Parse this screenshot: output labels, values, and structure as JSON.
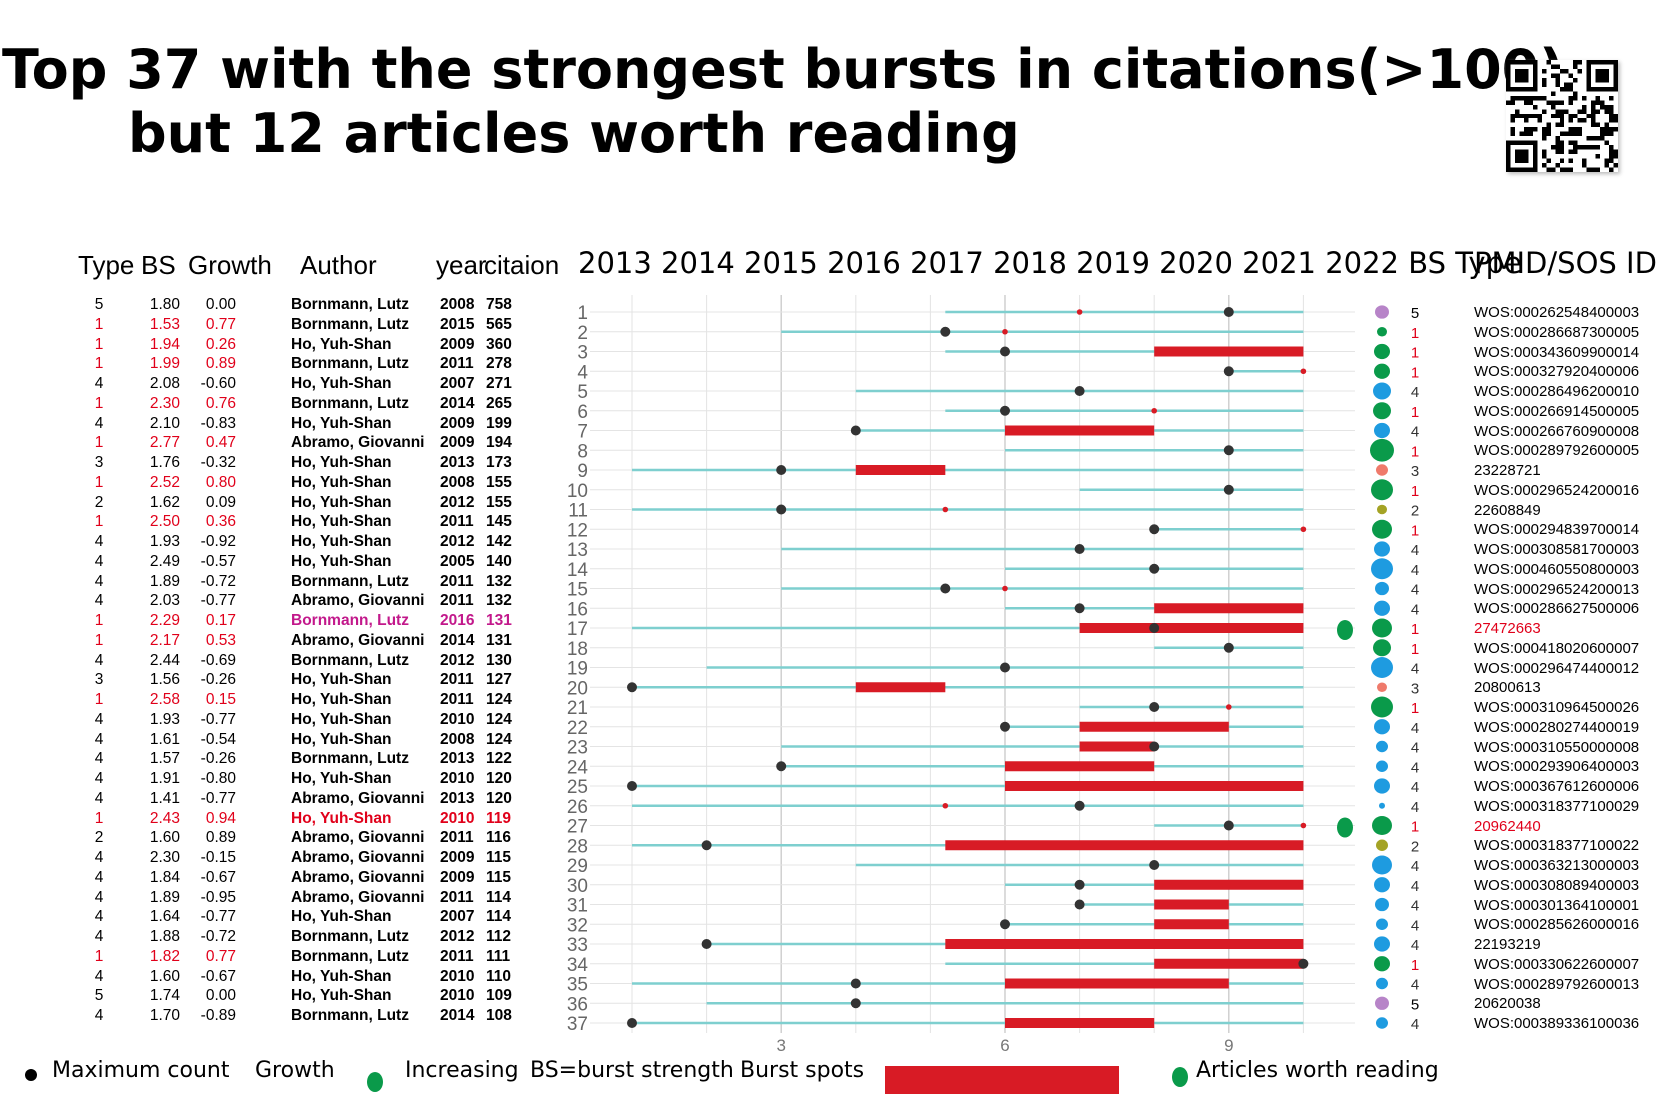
{
  "title_line1": "Top 37 with the strongest bursts in citations(>100),",
  "title_line2": "but 12 articles worth reading",
  "headers": {
    "type": "Type",
    "bs": "BS",
    "growth": "Growth",
    "author": "Author",
    "year": "year",
    "citation": "citaion",
    "years_bs_type": "2013 2014 2015 2016 2017 2018  2019  2020 2021 2022 BS Type",
    "pmid": "PMID/SOS ID"
  },
  "legend": {
    "max_count": "Maximum count",
    "growth": "Growth",
    "increasing": "Increasing",
    "bs_def": "BS=burst strength",
    "burst_spots": "Burst spots",
    "worth_reading": "Articles worth reading"
  },
  "colors": {
    "red": "#e0001a",
    "magenta": "#c2188b",
    "teal": "#7ecfcf",
    "burst": "#d81b25",
    "green": "#0a9a4a",
    "blue": "#1e9be0",
    "purple": "#b784c8",
    "salmon": "#ef7a6b",
    "olive": "#a4a325"
  },
  "rows": [
    {
      "type": "5",
      "bs": "1.80",
      "growth": "0.00",
      "author": "Bornmann, Lutz",
      "year": "2008",
      "cit": "758",
      "pmid": "WOS:000262548400003",
      "hl": ""
    },
    {
      "type": "1",
      "bs": "1.53",
      "growth": "0.77",
      "author": "Bornmann, Lutz",
      "year": "2015",
      "cit": "565",
      "pmid": "WOS:000286687300005",
      "hl": "red"
    },
    {
      "type": "1",
      "bs": "1.94",
      "growth": "0.26",
      "author": "Ho, Yuh-Shan",
      "year": "2009",
      "cit": "360",
      "pmid": "WOS:000343609900014",
      "hl": "red"
    },
    {
      "type": "1",
      "bs": "1.99",
      "growth": "0.89",
      "author": "Bornmann, Lutz",
      "year": "2011",
      "cit": "278",
      "pmid": "WOS:000327920400006",
      "hl": "red"
    },
    {
      "type": "4",
      "bs": "2.08",
      "growth": "-0.60",
      "author": "Ho, Yuh-Shan",
      "year": "2007",
      "cit": "271",
      "pmid": "WOS:000286496200010",
      "hl": ""
    },
    {
      "type": "1",
      "bs": "2.30",
      "growth": "0.76",
      "author": "Bornmann, Lutz",
      "year": "2014",
      "cit": "265",
      "pmid": "WOS:000266914500005",
      "hl": "red"
    },
    {
      "type": "4",
      "bs": "2.10",
      "growth": "-0.83",
      "author": "Ho, Yuh-Shan",
      "year": "2009",
      "cit": "199",
      "pmid": "WOS:000266760900008",
      "hl": ""
    },
    {
      "type": "1",
      "bs": "2.77",
      "growth": "0.47",
      "author": "Abramo, Giovanni",
      "year": "2009",
      "cit": "194",
      "pmid": "WOS:000289792600005",
      "hl": "red"
    },
    {
      "type": "3",
      "bs": "1.76",
      "growth": "-0.32",
      "author": "Ho, Yuh-Shan",
      "year": "2013",
      "cit": "173",
      "pmid": "23228721",
      "hl": ""
    },
    {
      "type": "1",
      "bs": "2.52",
      "growth": "0.80",
      "author": "Ho, Yuh-Shan",
      "year": "2008",
      "cit": "155",
      "pmid": "WOS:000296524200016",
      "hl": "red"
    },
    {
      "type": "2",
      "bs": "1.62",
      "growth": "0.09",
      "author": "Ho, Yuh-Shan",
      "year": "2012",
      "cit": "155",
      "pmid": "22608849",
      "hl": ""
    },
    {
      "type": "1",
      "bs": "2.50",
      "growth": "0.36",
      "author": "Ho, Yuh-Shan",
      "year": "2011",
      "cit": "145",
      "pmid": "WOS:000294839700014",
      "hl": "red"
    },
    {
      "type": "4",
      "bs": "1.93",
      "growth": "-0.92",
      "author": "Ho, Yuh-Shan",
      "year": "2012",
      "cit": "142",
      "pmid": "WOS:000308581700003",
      "hl": ""
    },
    {
      "type": "4",
      "bs": "2.49",
      "growth": "-0.57",
      "author": "Ho, Yuh-Shan",
      "year": "2005",
      "cit": "140",
      "pmid": "WOS:000460550800003",
      "hl": ""
    },
    {
      "type": "4",
      "bs": "1.89",
      "growth": "-0.72",
      "author": "Bornmann, Lutz",
      "year": "2011",
      "cit": "132",
      "pmid": "WOS:000296524200013",
      "hl": ""
    },
    {
      "type": "4",
      "bs": "2.03",
      "growth": "-0.77",
      "author": "Abramo, Giovanni",
      "year": "2011",
      "cit": "132",
      "pmid": "WOS:000286627500006",
      "hl": ""
    },
    {
      "type": "1",
      "bs": "2.29",
      "growth": "0.17",
      "author": "Bornmann, Lutz",
      "year": "2016",
      "cit": "131",
      "pmid": "27472663",
      "hl": "mag"
    },
    {
      "type": "1",
      "bs": "2.17",
      "growth": "0.53",
      "author": "Abramo, Giovanni",
      "year": "2014",
      "cit": "131",
      "pmid": "WOS:000418020600007",
      "hl": "red"
    },
    {
      "type": "4",
      "bs": "2.44",
      "growth": "-0.69",
      "author": "Bornmann, Lutz",
      "year": "2012",
      "cit": "130",
      "pmid": "WOS:000296474400012",
      "hl": ""
    },
    {
      "type": "3",
      "bs": "1.56",
      "growth": "-0.26",
      "author": "Ho, Yuh-Shan",
      "year": "2011",
      "cit": "127",
      "pmid": "20800613",
      "hl": ""
    },
    {
      "type": "1",
      "bs": "2.58",
      "growth": "0.15",
      "author": "Ho, Yuh-Shan",
      "year": "2011",
      "cit": "124",
      "pmid": "WOS:000310964500026",
      "hl": "red"
    },
    {
      "type": "4",
      "bs": "1.93",
      "growth": "-0.77",
      "author": "Ho, Yuh-Shan",
      "year": "2010",
      "cit": "124",
      "pmid": "WOS:000280274400019",
      "hl": ""
    },
    {
      "type": "4",
      "bs": "1.61",
      "growth": "-0.54",
      "author": "Ho, Yuh-Shan",
      "year": "2008",
      "cit": "124",
      "pmid": "WOS:000310550000008",
      "hl": ""
    },
    {
      "type": "4",
      "bs": "1.57",
      "growth": "-0.26",
      "author": "Bornmann, Lutz",
      "year": "2013",
      "cit": "122",
      "pmid": "WOS:000293906400003",
      "hl": ""
    },
    {
      "type": "4",
      "bs": "1.91",
      "growth": "-0.80",
      "author": "Ho, Yuh-Shan",
      "year": "2010",
      "cit": "120",
      "pmid": "WOS:000367612600006",
      "hl": ""
    },
    {
      "type": "4",
      "bs": "1.41",
      "growth": "-0.77",
      "author": "Abramo, Giovanni",
      "year": "2013",
      "cit": "120",
      "pmid": "WOS:000318377100029",
      "hl": ""
    },
    {
      "type": "1",
      "bs": "2.43",
      "growth": "0.94",
      "author": "Ho, Yuh-Shan",
      "year": "2010",
      "cit": "119",
      "pmid": "20962440",
      "hl": "redall"
    },
    {
      "type": "2",
      "bs": "1.60",
      "growth": "0.89",
      "author": "Abramo, Giovanni",
      "year": "2011",
      "cit": "116",
      "pmid": "WOS:000318377100022",
      "hl": ""
    },
    {
      "type": "4",
      "bs": "2.30",
      "growth": "-0.15",
      "author": "Abramo, Giovanni",
      "year": "2009",
      "cit": "115",
      "pmid": "WOS:000363213000003",
      "hl": ""
    },
    {
      "type": "4",
      "bs": "1.84",
      "growth": "-0.67",
      "author": "Abramo, Giovanni",
      "year": "2009",
      "cit": "115",
      "pmid": "WOS:000308089400003",
      "hl": ""
    },
    {
      "type": "4",
      "bs": "1.89",
      "growth": "-0.95",
      "author": "Abramo, Giovanni",
      "year": "2011",
      "cit": "114",
      "pmid": "WOS:000301364100001",
      "hl": ""
    },
    {
      "type": "4",
      "bs": "1.64",
      "growth": "-0.77",
      "author": "Ho, Yuh-Shan",
      "year": "2007",
      "cit": "114",
      "pmid": "WOS:000285626000016",
      "hl": ""
    },
    {
      "type": "4",
      "bs": "1.88",
      "growth": "-0.72",
      "author": "Bornmann, Lutz",
      "year": "2012",
      "cit": "112",
      "pmid": "22193219",
      "hl": ""
    },
    {
      "type": "1",
      "bs": "1.82",
      "growth": "0.77",
      "author": "Bornmann, Lutz",
      "year": "2011",
      "cit": "111",
      "pmid": "WOS:000330622600007",
      "hl": "red"
    },
    {
      "type": "4",
      "bs": "1.60",
      "growth": "-0.67",
      "author": "Ho, Yuh-Shan",
      "year": "2010",
      "cit": "110",
      "pmid": "WOS:000289792600013",
      "hl": ""
    },
    {
      "type": "5",
      "bs": "1.74",
      "growth": "0.00",
      "author": "Ho, Yuh-Shan",
      "year": "2010",
      "cit": "109",
      "pmid": "20620038",
      "hl": ""
    },
    {
      "type": "4",
      "bs": "1.70",
      "growth": "-0.89",
      "author": "Bornmann, Lutz",
      "year": "2014",
      "cit": "108",
      "pmid": "WOS:000389336100036",
      "hl": ""
    }
  ],
  "chart_data": {
    "type": "table",
    "x_ticks": [
      "3",
      "6",
      "9"
    ],
    "rows": [
      {
        "n": "1",
        "start": 5.2,
        "max": 9,
        "red_dot": 7,
        "bursts": [],
        "bs_color": "purple",
        "bs_size": 7,
        "reading": false
      },
      {
        "n": "2",
        "start": 3,
        "max": 5.2,
        "red_dot": 6,
        "bursts": [],
        "bs_color": "green",
        "bs_size": 5,
        "reading": false
      },
      {
        "n": "3",
        "start": 5.2,
        "max": 6,
        "red_dot": null,
        "bursts": [
          [
            8,
            10
          ]
        ],
        "bs_color": "green",
        "bs_size": 8,
        "reading": false
      },
      {
        "n": "4",
        "start": 9,
        "max": 9,
        "red_dot": 10,
        "bursts": [],
        "bs_color": "green",
        "bs_size": 8,
        "reading": false
      },
      {
        "n": "5",
        "start": 4,
        "max": 7,
        "red_dot": null,
        "bursts": [],
        "bs_color": "blue",
        "bs_size": 9,
        "reading": false
      },
      {
        "n": "6",
        "start": 5.2,
        "max": 6,
        "red_dot": 8,
        "bursts": [],
        "bs_color": "green",
        "bs_size": 9,
        "reading": false
      },
      {
        "n": "7",
        "start": 4,
        "max": 4,
        "red_dot": null,
        "bursts": [
          [
            6,
            8
          ]
        ],
        "bs_color": "blue",
        "bs_size": 8,
        "reading": false
      },
      {
        "n": "8",
        "start": 6,
        "max": 9,
        "red_dot": null,
        "bursts": [],
        "bs_color": "green",
        "bs_size": 12,
        "reading": false
      },
      {
        "n": "9",
        "start": 1,
        "max": 3,
        "red_dot": null,
        "bursts": [
          [
            4,
            5.2
          ]
        ],
        "bs_color": "salmon",
        "bs_size": 6,
        "reading": false
      },
      {
        "n": "10",
        "start": 7,
        "max": 9,
        "red_dot": null,
        "bursts": [],
        "bs_color": "green",
        "bs_size": 11,
        "reading": false
      },
      {
        "n": "11",
        "start": 1,
        "max": 3,
        "red_dot": 5.2,
        "bursts": [],
        "bs_color": "olive",
        "bs_size": 5,
        "reading": false
      },
      {
        "n": "12",
        "start": 8,
        "max": 8,
        "red_dot": 10,
        "bursts": [],
        "bs_color": "green",
        "bs_size": 10,
        "reading": false
      },
      {
        "n": "13",
        "start": 3,
        "max": 7,
        "red_dot": null,
        "bursts": [],
        "bs_color": "blue",
        "bs_size": 8,
        "reading": false
      },
      {
        "n": "14",
        "start": 6,
        "max": 8,
        "red_dot": null,
        "bursts": [],
        "bs_color": "blue",
        "bs_size": 11,
        "reading": false
      },
      {
        "n": "15",
        "start": 3,
        "max": 5.2,
        "red_dot": 6,
        "bursts": [],
        "bs_color": "blue",
        "bs_size": 7,
        "reading": false
      },
      {
        "n": "16",
        "start": 6,
        "max": 7,
        "red_dot": null,
        "bursts": [
          [
            8,
            10
          ]
        ],
        "bs_color": "blue",
        "bs_size": 8,
        "reading": false
      },
      {
        "n": "17",
        "start": 1,
        "max": 8,
        "red_dot": null,
        "bursts": [
          [
            7,
            10
          ]
        ],
        "bs_color": "green",
        "bs_size": 10,
        "reading": true
      },
      {
        "n": "18",
        "start": 8,
        "max": 9,
        "red_dot": null,
        "bursts": [],
        "bs_color": "green",
        "bs_size": 9,
        "reading": false
      },
      {
        "n": "19",
        "start": 2,
        "max": 6,
        "red_dot": null,
        "bursts": [],
        "bs_color": "blue",
        "bs_size": 11,
        "reading": false
      },
      {
        "n": "20",
        "start": 1,
        "max": 1,
        "red_dot": null,
        "bursts": [
          [
            4,
            5.2
          ]
        ],
        "bs_color": "salmon",
        "bs_size": 5,
        "reading": false
      },
      {
        "n": "21",
        "start": 7,
        "max": 8,
        "red_dot": 9,
        "bursts": [],
        "bs_color": "green",
        "bs_size": 11,
        "reading": false
      },
      {
        "n": "22",
        "start": 6,
        "max": 6,
        "red_dot": null,
        "bursts": [
          [
            7,
            9
          ]
        ],
        "bs_color": "blue",
        "bs_size": 8,
        "reading": false
      },
      {
        "n": "23",
        "start": 3,
        "max": 8,
        "red_dot": null,
        "bursts": [
          [
            7,
            8
          ]
        ],
        "bs_color": "blue",
        "bs_size": 6,
        "reading": false
      },
      {
        "n": "24",
        "start": 3,
        "max": 3,
        "red_dot": null,
        "bursts": [
          [
            6,
            8
          ]
        ],
        "bs_color": "blue",
        "bs_size": 6,
        "reading": false
      },
      {
        "n": "25",
        "start": 1,
        "max": 1,
        "red_dot": null,
        "bursts": [
          [
            6,
            10
          ]
        ],
        "bs_color": "blue",
        "bs_size": 8,
        "reading": false
      },
      {
        "n": "26",
        "start": 1,
        "max": 7,
        "red_dot": 5.2,
        "bursts": [],
        "bs_color": "blue",
        "bs_size": 3,
        "reading": false
      },
      {
        "n": "27",
        "start": 8,
        "max": 9,
        "red_dot": 10,
        "bursts": [],
        "bs_color": "green",
        "bs_size": 10,
        "reading": true
      },
      {
        "n": "28",
        "start": 1,
        "max": 2,
        "red_dot": null,
        "bursts": [
          [
            5.2,
            10
          ]
        ],
        "bs_color": "olive",
        "bs_size": 6,
        "reading": false
      },
      {
        "n": "29",
        "start": 4,
        "max": 8,
        "red_dot": null,
        "bursts": [],
        "bs_color": "blue",
        "bs_size": 10,
        "reading": false
      },
      {
        "n": "30",
        "start": 6,
        "max": 7,
        "red_dot": null,
        "bursts": [
          [
            8,
            10
          ]
        ],
        "bs_color": "blue",
        "bs_size": 8,
        "reading": false
      },
      {
        "n": "31",
        "start": 7,
        "max": 7,
        "red_dot": null,
        "bursts": [
          [
            8,
            9
          ]
        ],
        "bs_color": "blue",
        "bs_size": 7,
        "reading": false
      },
      {
        "n": "32",
        "start": 6,
        "max": 6,
        "red_dot": null,
        "bursts": [
          [
            8,
            9
          ]
        ],
        "bs_color": "blue",
        "bs_size": 6,
        "reading": false
      },
      {
        "n": "33",
        "start": 2,
        "max": 2,
        "red_dot": null,
        "bursts": [
          [
            5.2,
            10
          ]
        ],
        "bs_color": "blue",
        "bs_size": 8,
        "reading": false
      },
      {
        "n": "34",
        "start": 5.2,
        "max": 10,
        "red_dot": null,
        "bursts": [
          [
            8,
            10
          ]
        ],
        "bs_color": "green",
        "bs_size": 8,
        "reading": false
      },
      {
        "n": "35",
        "start": 1,
        "max": 4,
        "red_dot": null,
        "bursts": [
          [
            6,
            9
          ]
        ],
        "bs_color": "blue",
        "bs_size": 6,
        "reading": false
      },
      {
        "n": "36",
        "start": 2,
        "max": 4,
        "red_dot": null,
        "bursts": [],
        "bs_color": "purple",
        "bs_size": 7,
        "reading": false
      },
      {
        "n": "37",
        "start": 1,
        "max": 1,
        "red_dot": null,
        "bursts": [
          [
            6,
            8
          ]
        ],
        "bs_color": "blue",
        "bs_size": 6,
        "reading": false
      }
    ]
  }
}
